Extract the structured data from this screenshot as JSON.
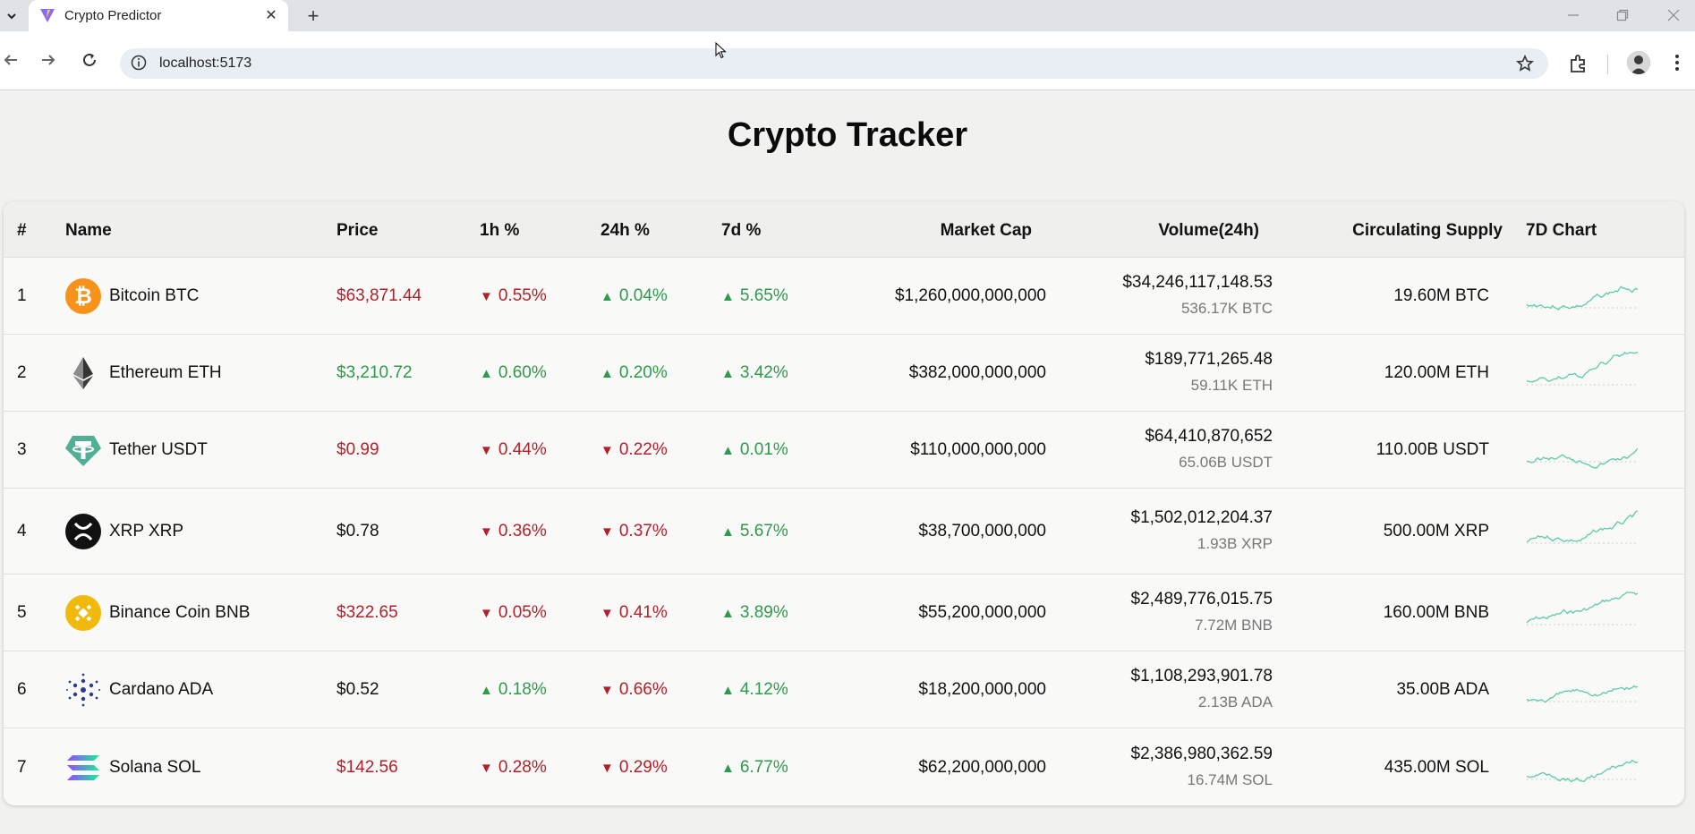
{
  "browser": {
    "tab_title": "Crypto Predictor",
    "url": "localhost:5173",
    "close_glyph": "✕",
    "newtab_glyph": "+"
  },
  "page": {
    "title": "Crypto Tracker"
  },
  "table": {
    "headers": [
      "#",
      "Name",
      "Price",
      "1h %",
      "24h %",
      "7d %",
      "Market Cap",
      "Volume(24h)",
      "Circulating Supply",
      "7D Chart"
    ],
    "rows": [
      {
        "rank": "1",
        "name": "Bitcoin BTC",
        "icon": "bitcoin-icon",
        "price": "$63,871.44",
        "price_color": "red",
        "h1": {
          "dir": "down",
          "value": "0.55%"
        },
        "h24": {
          "dir": "up",
          "value": "0.04%"
        },
        "d7": {
          "dir": "up",
          "value": "5.65%"
        },
        "market_cap": "$1,260,000,000,000",
        "volume": "$34,246,117,148.53",
        "volume_coin": "536.17K BTC",
        "supply": "19.60M BTC"
      },
      {
        "rank": "2",
        "name": "Ethereum ETH",
        "icon": "ethereum-icon",
        "price": "$3,210.72",
        "price_color": "green",
        "h1": {
          "dir": "up",
          "value": "0.60%"
        },
        "h24": {
          "dir": "up",
          "value": "0.20%"
        },
        "d7": {
          "dir": "up",
          "value": "3.42%"
        },
        "market_cap": "$382,000,000,000",
        "volume": "$189,771,265.48",
        "volume_coin": "59.11K ETH",
        "supply": "120.00M ETH"
      },
      {
        "rank": "3",
        "name": "Tether USDT",
        "icon": "tether-icon",
        "price": "$0.99",
        "price_color": "red",
        "h1": {
          "dir": "down",
          "value": "0.44%"
        },
        "h24": {
          "dir": "down",
          "value": "0.22%"
        },
        "d7": {
          "dir": "up",
          "value": "0.01%"
        },
        "market_cap": "$110,000,000,000",
        "volume": "$64,410,870,652",
        "volume_coin": "65.06B USDT",
        "supply": "110.00B USDT"
      },
      {
        "rank": "4",
        "name": "XRP XRP",
        "icon": "xrp-icon",
        "price": "$0.78",
        "price_color": "black",
        "h1": {
          "dir": "down",
          "value": "0.36%"
        },
        "h24": {
          "dir": "down",
          "value": "0.37%"
        },
        "d7": {
          "dir": "up",
          "value": "5.67%"
        },
        "market_cap": "$38,700,000,000",
        "volume": "$1,502,012,204.37",
        "volume_coin": "1.93B XRP",
        "supply": "500.00M XRP"
      },
      {
        "rank": "5",
        "name": "Binance Coin BNB",
        "icon": "binance-icon",
        "price": "$322.65",
        "price_color": "red",
        "h1": {
          "dir": "down",
          "value": "0.05%"
        },
        "h24": {
          "dir": "down",
          "value": "0.41%"
        },
        "d7": {
          "dir": "up",
          "value": "3.89%"
        },
        "market_cap": "$55,200,000,000",
        "volume": "$2,489,776,015.75",
        "volume_coin": "7.72M BNB",
        "supply": "160.00M BNB"
      },
      {
        "rank": "6",
        "name": "Cardano ADA",
        "icon": "cardano-icon",
        "price": "$0.52",
        "price_color": "black",
        "h1": {
          "dir": "up",
          "value": "0.18%"
        },
        "h24": {
          "dir": "down",
          "value": "0.66%"
        },
        "d7": {
          "dir": "up",
          "value": "4.12%"
        },
        "market_cap": "$18,200,000,000",
        "volume": "$1,108,293,901.78",
        "volume_coin": "2.13B ADA",
        "supply": "35.00B ADA"
      },
      {
        "rank": "7",
        "name": "Solana SOL",
        "icon": "solana-icon",
        "price": "$142.56",
        "price_color": "red",
        "h1": {
          "dir": "down",
          "value": "0.28%"
        },
        "h24": {
          "dir": "down",
          "value": "0.29%"
        },
        "d7": {
          "dir": "up",
          "value": "6.77%"
        },
        "market_cap": "$62,200,000,000",
        "volume": "$2,386,980,362.59",
        "volume_coin": "16.74M SOL",
        "supply": "435.00M SOL"
      }
    ]
  },
  "colors": {
    "up": "#2e9a4d",
    "down": "#b3202c",
    "sparkline": "#5fcaa8",
    "bitcoin": "#f7931a",
    "tether": "#50af95",
    "binance": "#f0b90b",
    "cardano": "#2a3c8f"
  }
}
